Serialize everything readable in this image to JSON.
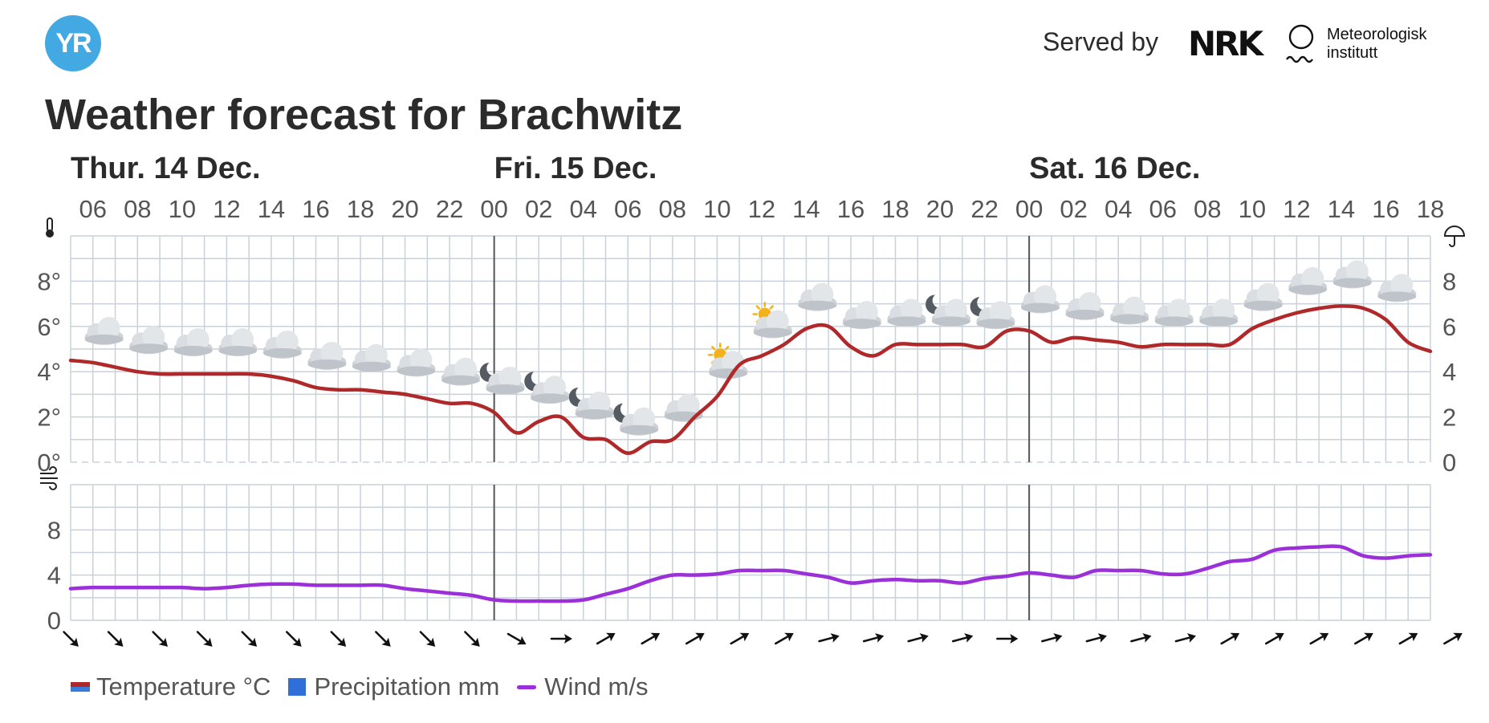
{
  "header": {
    "logo_text": "YR",
    "served_by": "Served by",
    "nrk_logo_text": "NRK",
    "met_line1": "Meteorologisk",
    "met_line2": "institutt"
  },
  "title": "Weather forecast for Brachwitz",
  "colors": {
    "temperature": "#b0292a",
    "temperature_cold": "#3b7bd9",
    "precipitation": "#2f6fd8",
    "wind": "#9b30d9",
    "grid": "#c9d1da",
    "day_divider": "#555555",
    "yr_blue": "#42a9e3"
  },
  "icons": {
    "temperature_axis": "thermometer-icon",
    "precipitation_axis": "umbrella-icon",
    "wind_axis": "wind-icon",
    "weather": [
      "cloudy-icon",
      "partly-cloudy-night-icon",
      "partly-cloudy-day-icon"
    ],
    "wind_direction": "wind-direction-arrow-icon"
  },
  "legend": [
    {
      "key": "temperature",
      "label": "Temperature °C"
    },
    {
      "key": "precipitation",
      "label": "Precipitation mm"
    },
    {
      "key": "wind",
      "label": "Wind m/s"
    }
  ],
  "chart_data": {
    "type": "line",
    "start_hour": 5,
    "days": [
      {
        "label": "Thur. 14 Dec.",
        "start_hour_index": 0
      },
      {
        "label": "Fri. 15 Dec.",
        "start_hour_index": 19
      },
      {
        "label": "Sat. 16 Dec.",
        "start_hour_index": 43
      }
    ],
    "hour_ticks": [
      "06",
      "08",
      "10",
      "12",
      "14",
      "16",
      "18",
      "20",
      "22",
      "00",
      "02",
      "04",
      "06",
      "08",
      "10",
      "12",
      "14",
      "16",
      "18",
      "20",
      "22",
      "00",
      "02",
      "04",
      "06",
      "08",
      "10",
      "12",
      "14",
      "16",
      "18"
    ],
    "temperature": {
      "name": "Temperature °C",
      "y_ticks": [
        "0°",
        "2°",
        "4°",
        "6°",
        "8°"
      ],
      "ylim": [
        0,
        10
      ],
      "values": [
        4.5,
        4.4,
        4.2,
        4.0,
        3.9,
        3.9,
        3.9,
        3.9,
        3.9,
        3.8,
        3.6,
        3.3,
        3.2,
        3.2,
        3.1,
        3.0,
        2.8,
        2.6,
        2.6,
        2.2,
        1.3,
        1.8,
        2.0,
        1.1,
        1.0,
        0.4,
        0.9,
        1.0,
        2.0,
        2.9,
        4.3,
        4.7,
        5.2,
        5.9,
        6.0,
        5.1,
        4.7,
        5.2,
        5.2,
        5.2,
        5.2,
        5.1,
        5.8,
        5.8,
        5.3,
        5.5,
        5.4,
        5.3,
        5.1,
        5.2,
        5.2,
        5.2,
        5.2,
        5.9,
        6.3,
        6.6,
        6.8,
        6.9,
        6.8,
        6.3,
        5.3,
        4.9
      ]
    },
    "precipitation": {
      "name": "Precipitation mm",
      "y_ticks": [
        "0",
        "2",
        "4",
        "6",
        "8"
      ],
      "ylim": [
        0,
        10
      ],
      "values": []
    },
    "wind": {
      "name": "Wind m/s",
      "y_ticks": [
        "0",
        "4",
        "8"
      ],
      "ylim": [
        0,
        12
      ],
      "values": [
        2.8,
        2.9,
        2.9,
        2.9,
        2.9,
        2.9,
        2.8,
        2.9,
        3.1,
        3.2,
        3.2,
        3.1,
        3.1,
        3.1,
        3.1,
        2.8,
        2.6,
        2.4,
        2.2,
        1.8,
        1.7,
        1.7,
        1.7,
        1.8,
        2.3,
        2.8,
        3.5,
        4.0,
        4.0,
        4.1,
        4.4,
        4.4,
        4.4,
        4.1,
        3.8,
        3.3,
        3.5,
        3.6,
        3.5,
        3.5,
        3.3,
        3.7,
        3.9,
        4.2,
        4.0,
        3.8,
        4.4,
        4.4,
        4.4,
        4.1,
        4.1,
        4.6,
        5.2,
        5.4,
        6.2,
        6.4,
        6.5,
        6.5,
        5.7,
        5.5,
        5.7,
        5.8
      ]
    },
    "weather_icons": [
      {
        "hour_index": 1,
        "icon": "cloudy-icon"
      },
      {
        "hour_index": 3,
        "icon": "cloudy-icon"
      },
      {
        "hour_index": 5,
        "icon": "cloudy-icon"
      },
      {
        "hour_index": 7,
        "icon": "cloudy-icon"
      },
      {
        "hour_index": 9,
        "icon": "cloudy-icon"
      },
      {
        "hour_index": 11,
        "icon": "cloudy-icon"
      },
      {
        "hour_index": 13,
        "icon": "cloudy-icon"
      },
      {
        "hour_index": 15,
        "icon": "cloudy-icon"
      },
      {
        "hour_index": 17,
        "icon": "cloudy-icon"
      },
      {
        "hour_index": 19,
        "icon": "partly-cloudy-night-icon"
      },
      {
        "hour_index": 21,
        "icon": "partly-cloudy-night-icon"
      },
      {
        "hour_index": 23,
        "icon": "partly-cloudy-night-icon"
      },
      {
        "hour_index": 25,
        "icon": "partly-cloudy-night-icon"
      },
      {
        "hour_index": 27,
        "icon": "cloudy-icon"
      },
      {
        "hour_index": 29,
        "icon": "partly-cloudy-day-icon"
      },
      {
        "hour_index": 31,
        "icon": "partly-cloudy-day-icon"
      },
      {
        "hour_index": 33,
        "icon": "cloudy-icon"
      },
      {
        "hour_index": 35,
        "icon": "cloudy-icon"
      },
      {
        "hour_index": 37,
        "icon": "cloudy-icon"
      },
      {
        "hour_index": 39,
        "icon": "partly-cloudy-night-icon"
      },
      {
        "hour_index": 41,
        "icon": "partly-cloudy-night-icon"
      },
      {
        "hour_index": 43,
        "icon": "cloudy-icon"
      },
      {
        "hour_index": 45,
        "icon": "cloudy-icon"
      },
      {
        "hour_index": 47,
        "icon": "cloudy-icon"
      },
      {
        "hour_index": 49,
        "icon": "cloudy-icon"
      },
      {
        "hour_index": 51,
        "icon": "cloudy-icon"
      },
      {
        "hour_index": 53,
        "icon": "cloudy-icon"
      },
      {
        "hour_index": 55,
        "icon": "cloudy-icon"
      },
      {
        "hour_index": 57,
        "icon": "cloudy-icon"
      },
      {
        "hour_index": 59,
        "icon": "cloudy-icon"
      }
    ],
    "wind_directions_deg": [
      135,
      135,
      135,
      135,
      135,
      135,
      135,
      135,
      135,
      135,
      120,
      90,
      60,
      60,
      60,
      60,
      60,
      75,
      75,
      75,
      75,
      90,
      75,
      75,
      75,
      75,
      60,
      60,
      60,
      60,
      60,
      60
    ]
  }
}
